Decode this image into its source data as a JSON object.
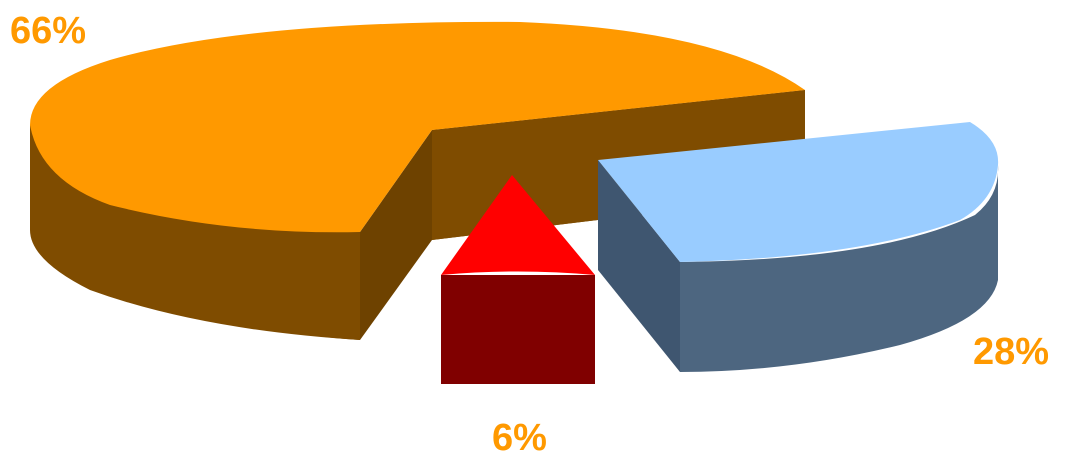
{
  "chart_data": {
    "type": "pie",
    "style": "3d-exploded",
    "title": "",
    "slices": [
      {
        "label": "66%",
        "value": 66,
        "top_color": "#FF9900",
        "side_color": "#7F4C00"
      },
      {
        "label": "6%",
        "value": 6,
        "top_color": "#FF0000",
        "side_color": "#800000"
      },
      {
        "label": "28%",
        "value": 28,
        "top_color": "#99CCFF",
        "side_color": "#4D6680"
      }
    ],
    "label_color": "#FF9900"
  }
}
